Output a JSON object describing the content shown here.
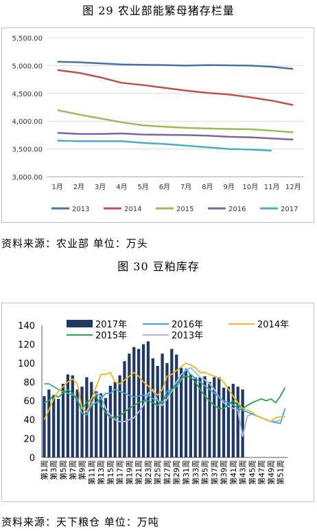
{
  "fig29": {
    "title": "图 29  农业部能繁母猪存栏量",
    "source": "资料来源：农业部  单位：万头"
  },
  "fig30": {
    "title": "图 30 豆粕库存",
    "source": "资料来源：天下粮仓  单位：万吨"
  },
  "chart_data": [
    {
      "type": "line",
      "categories": [
        "1月",
        "2月",
        "3月",
        "4月",
        "5月",
        "6月",
        "7月",
        "8月",
        "9月",
        "10月",
        "11月",
        "12月"
      ],
      "ylim": [
        3000,
        5500
      ],
      "yticks": [
        "3,000.00",
        "3,500.00",
        "4,000.00",
        "4,500.00",
        "5,000.00",
        "5,500.00"
      ],
      "grid": true,
      "legend_position": "bottom",
      "series": [
        {
          "name": "2013",
          "color": "#4472a8",
          "values": [
            5070,
            5060,
            5040,
            5020,
            5015,
            5010,
            5000,
            5010,
            5005,
            5000,
            4980,
            4940
          ]
        },
        {
          "name": "2014",
          "color": "#c0504d",
          "values": [
            4920,
            4870,
            4790,
            4690,
            4650,
            4600,
            4550,
            4510,
            4480,
            4430,
            4370,
            4290
          ]
        },
        {
          "name": "2015",
          "color": "#9bbb59",
          "values": [
            4200,
            4120,
            4050,
            3980,
            3925,
            3900,
            3880,
            3870,
            3860,
            3855,
            3830,
            3800
          ]
        },
        {
          "name": "2016",
          "color": "#8064a2",
          "values": [
            3790,
            3770,
            3770,
            3780,
            3760,
            3755,
            3750,
            3740,
            3720,
            3710,
            3690,
            3670
          ]
        },
        {
          "name": "2017",
          "color": "#4bacc6",
          "values": [
            3650,
            3640,
            3640,
            3640,
            3610,
            3590,
            3560,
            3530,
            3500,
            3490,
            3470,
            null
          ]
        }
      ]
    },
    {
      "type": "bar",
      "title": "",
      "ylim": [
        0,
        140
      ],
      "yticks": [
        0,
        20,
        40,
        60,
        80,
        100,
        120,
        140
      ],
      "grid": false,
      "legend_position": "top",
      "week_count": 52,
      "week_labels": [
        "第1周",
        "第3周",
        "第5周",
        "第7周",
        "第9周",
        "第11周",
        "第13周",
        "第15周",
        "第17周",
        "第19周",
        "第21周",
        "第23周",
        "第25周",
        "第27周",
        "第29周",
        "第31周",
        "第33周",
        "第35周",
        "第37周",
        "第39周",
        "第41周",
        "第43周",
        "第45周",
        "第47周",
        "第49周",
        "第51周"
      ],
      "bar_series": {
        "name": "2017年",
        "color": "#1f3864",
        "values": [
          65,
          72,
          66,
          62,
          78,
          88,
          87,
          72,
          75,
          85,
          80,
          70,
          68,
          63,
          76,
          80,
          87,
          102,
          110,
          117,
          115,
          120,
          123,
          105,
          97,
          110,
          100,
          115,
          109,
          95,
          92,
          88,
          85,
          85,
          86,
          80,
          85,
          85,
          74,
          75,
          78,
          75,
          72
        ]
      },
      "line_series": [
        {
          "name": "2016年",
          "color": "#35a7de",
          "values": [
            78,
            78,
            75,
            72,
            70,
            68,
            66,
            63,
            47,
            45,
            55,
            58,
            62,
            68,
            68,
            72,
            70,
            68,
            66,
            64,
            65,
            66,
            66,
            62,
            60,
            58,
            70,
            72,
            75,
            82,
            94,
            88,
            84,
            80,
            76,
            72,
            68,
            64,
            60,
            58,
            56,
            52,
            50,
            48,
            46,
            44,
            42,
            40,
            38,
            37,
            36,
            52
          ]
        },
        {
          "name": "2015年",
          "color": "#2aa14b",
          "values": [
            58,
            60,
            66,
            64,
            68,
            72,
            68,
            60,
            52,
            58,
            62,
            65,
            55,
            48,
            42,
            42,
            44,
            48,
            52,
            55,
            58,
            60,
            60,
            58,
            55,
            60,
            65,
            72,
            78,
            84,
            86,
            85,
            80,
            72,
            65,
            60,
            55,
            52,
            52,
            56,
            60,
            55,
            52,
            55,
            58,
            60,
            62,
            60,
            62,
            58,
            65,
            74
          ]
        },
        {
          "name": "2014年",
          "color": "#f0b422",
          "values": [
            40,
            50,
            62,
            70,
            75,
            80,
            83,
            78,
            52,
            48,
            62,
            75,
            88,
            88,
            90,
            80,
            78,
            82,
            86,
            90,
            86,
            80,
            76,
            70,
            66,
            72,
            86,
            88,
            92,
            96,
            100,
            98,
            95,
            90,
            90,
            88,
            86,
            84,
            80,
            72,
            65,
            58,
            52,
            50,
            48,
            44,
            42,
            40,
            38,
            42,
            43,
            43
          ]
        },
        {
          "name": "2013年",
          "color": "#a9b4e8",
          "values": [
            null,
            null,
            null,
            null,
            null,
            null,
            null,
            null,
            null,
            null,
            null,
            null,
            null,
            null,
            null,
            null,
            null,
            null,
            null,
            null,
            null,
            null,
            null,
            null,
            null,
            null,
            null,
            null,
            null,
            null,
            null,
            null,
            null,
            null,
            null,
            null,
            null,
            null,
            null,
            null,
            null,
            null,
            null,
            null,
            null,
            null,
            null,
            null,
            null,
            null,
            null,
            null
          ]
        }
      ],
      "line2013": [
        null,
        null,
        null,
        null,
        null,
        null,
        null,
        null,
        null,
        49,
        56,
        68,
        65,
        52,
        45,
        40,
        38,
        38,
        40,
        42,
        48,
        55,
        68,
        72,
        60,
        55,
        62,
        70,
        80,
        88,
        92,
        95,
        90,
        85,
        82,
        78,
        72,
        64,
        58,
        54,
        52,
        50,
        22,
        44,
        46,
        44,
        42,
        40,
        38,
        38,
        40,
        null
      ]
    }
  ]
}
